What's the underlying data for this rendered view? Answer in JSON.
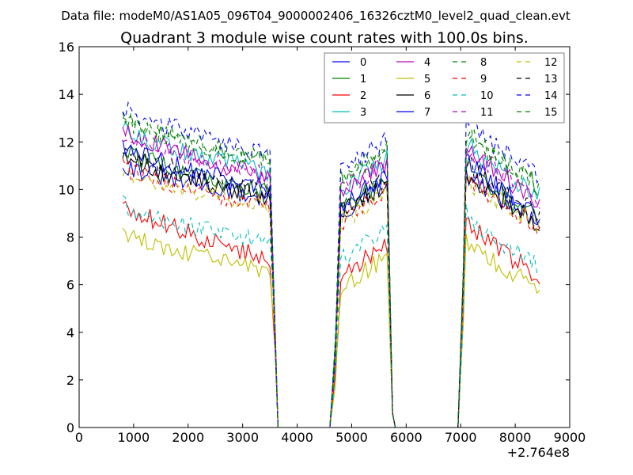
{
  "chart_data": {
    "type": "line",
    "suptitle": "Data file: modeM0/AS1A05_096T04_9000002406_16326cztM0_level2_quad_clean.evt",
    "title": "Quadrant 3 module wise count rates with 100.0s bins.",
    "xlabel": "",
    "ylabel": "",
    "x_offset_label": "+2.764e8",
    "xlim": [
      0,
      9000
    ],
    "ylim": [
      0,
      16
    ],
    "xticks": [
      0,
      1000,
      2000,
      3000,
      4000,
      5000,
      6000,
      7000,
      8000,
      9000
    ],
    "yticks": [
      0,
      2,
      4,
      6,
      8,
      10,
      12,
      14,
      16
    ],
    "grid": false,
    "legend_position": "top-right",
    "legend_columns": 4,
    "segments": [
      {
        "start": 800,
        "end": 3500
      },
      {
        "start": 4650,
        "end": 5650
      },
      {
        "start": 7000,
        "end": 8450
      }
    ],
    "series": [
      {
        "name": "0",
        "color": "#0000ff",
        "style": "solid",
        "levels": [
          11.1,
          10.5,
          9.9,
          8.3
        ]
      },
      {
        "name": "1",
        "color": "#008000",
        "style": "solid",
        "levels": [
          11.7,
          11.0,
          10.2,
          8.4
        ]
      },
      {
        "name": "2",
        "color": "#ff0000",
        "style": "solid",
        "levels": [
          9.5,
          8.6,
          7.4,
          6.0
        ]
      },
      {
        "name": "3",
        "color": "#00bfbf",
        "style": "solid",
        "levels": [
          12.6,
          11.8,
          11.0,
          9.4
        ]
      },
      {
        "name": "4",
        "color": "#bf00bf",
        "style": "solid",
        "levels": [
          12.6,
          11.7,
          10.8,
          9.1
        ]
      },
      {
        "name": "5",
        "color": "#bfbf00",
        "style": "solid",
        "levels": [
          8.3,
          7.7,
          6.9,
          5.5
        ]
      },
      {
        "name": "6",
        "color": "#000000",
        "style": "solid",
        "levels": [
          11.4,
          10.7,
          10.0,
          8.2
        ]
      },
      {
        "name": "7",
        "color": "#0000ff",
        "style": "solid",
        "levels": [
          11.9,
          11.2,
          10.3,
          8.5
        ]
      },
      {
        "name": "8",
        "color": "#008000",
        "style": "dashed",
        "levels": [
          13.0,
          12.2,
          11.5,
          9.9
        ]
      },
      {
        "name": "9",
        "color": "#ff0000",
        "style": "dashed",
        "levels": [
          11.0,
          10.4,
          9.6,
          8.1
        ]
      },
      {
        "name": "10",
        "color": "#00bfbf",
        "style": "dashed",
        "levels": [
          9.4,
          8.9,
          8.0,
          6.4
        ]
      },
      {
        "name": "11",
        "color": "#bf00bf",
        "style": "dashed",
        "levels": [
          12.4,
          11.7,
          10.9,
          9.3
        ]
      },
      {
        "name": "12",
        "color": "#bfbf00",
        "style": "dashed",
        "levels": [
          10.9,
          10.3,
          9.6,
          8.2
        ]
      },
      {
        "name": "13",
        "color": "#000000",
        "style": "dashed",
        "levels": [
          11.6,
          11.0,
          10.2,
          8.7
        ]
      },
      {
        "name": "14",
        "color": "#0000ff",
        "style": "dashed",
        "levels": [
          13.5,
          12.7,
          11.8,
          10.3
        ]
      },
      {
        "name": "15",
        "color": "#008000",
        "style": "dashed",
        "levels": [
          13.2,
          12.3,
          11.4,
          9.8
        ]
      }
    ]
  }
}
